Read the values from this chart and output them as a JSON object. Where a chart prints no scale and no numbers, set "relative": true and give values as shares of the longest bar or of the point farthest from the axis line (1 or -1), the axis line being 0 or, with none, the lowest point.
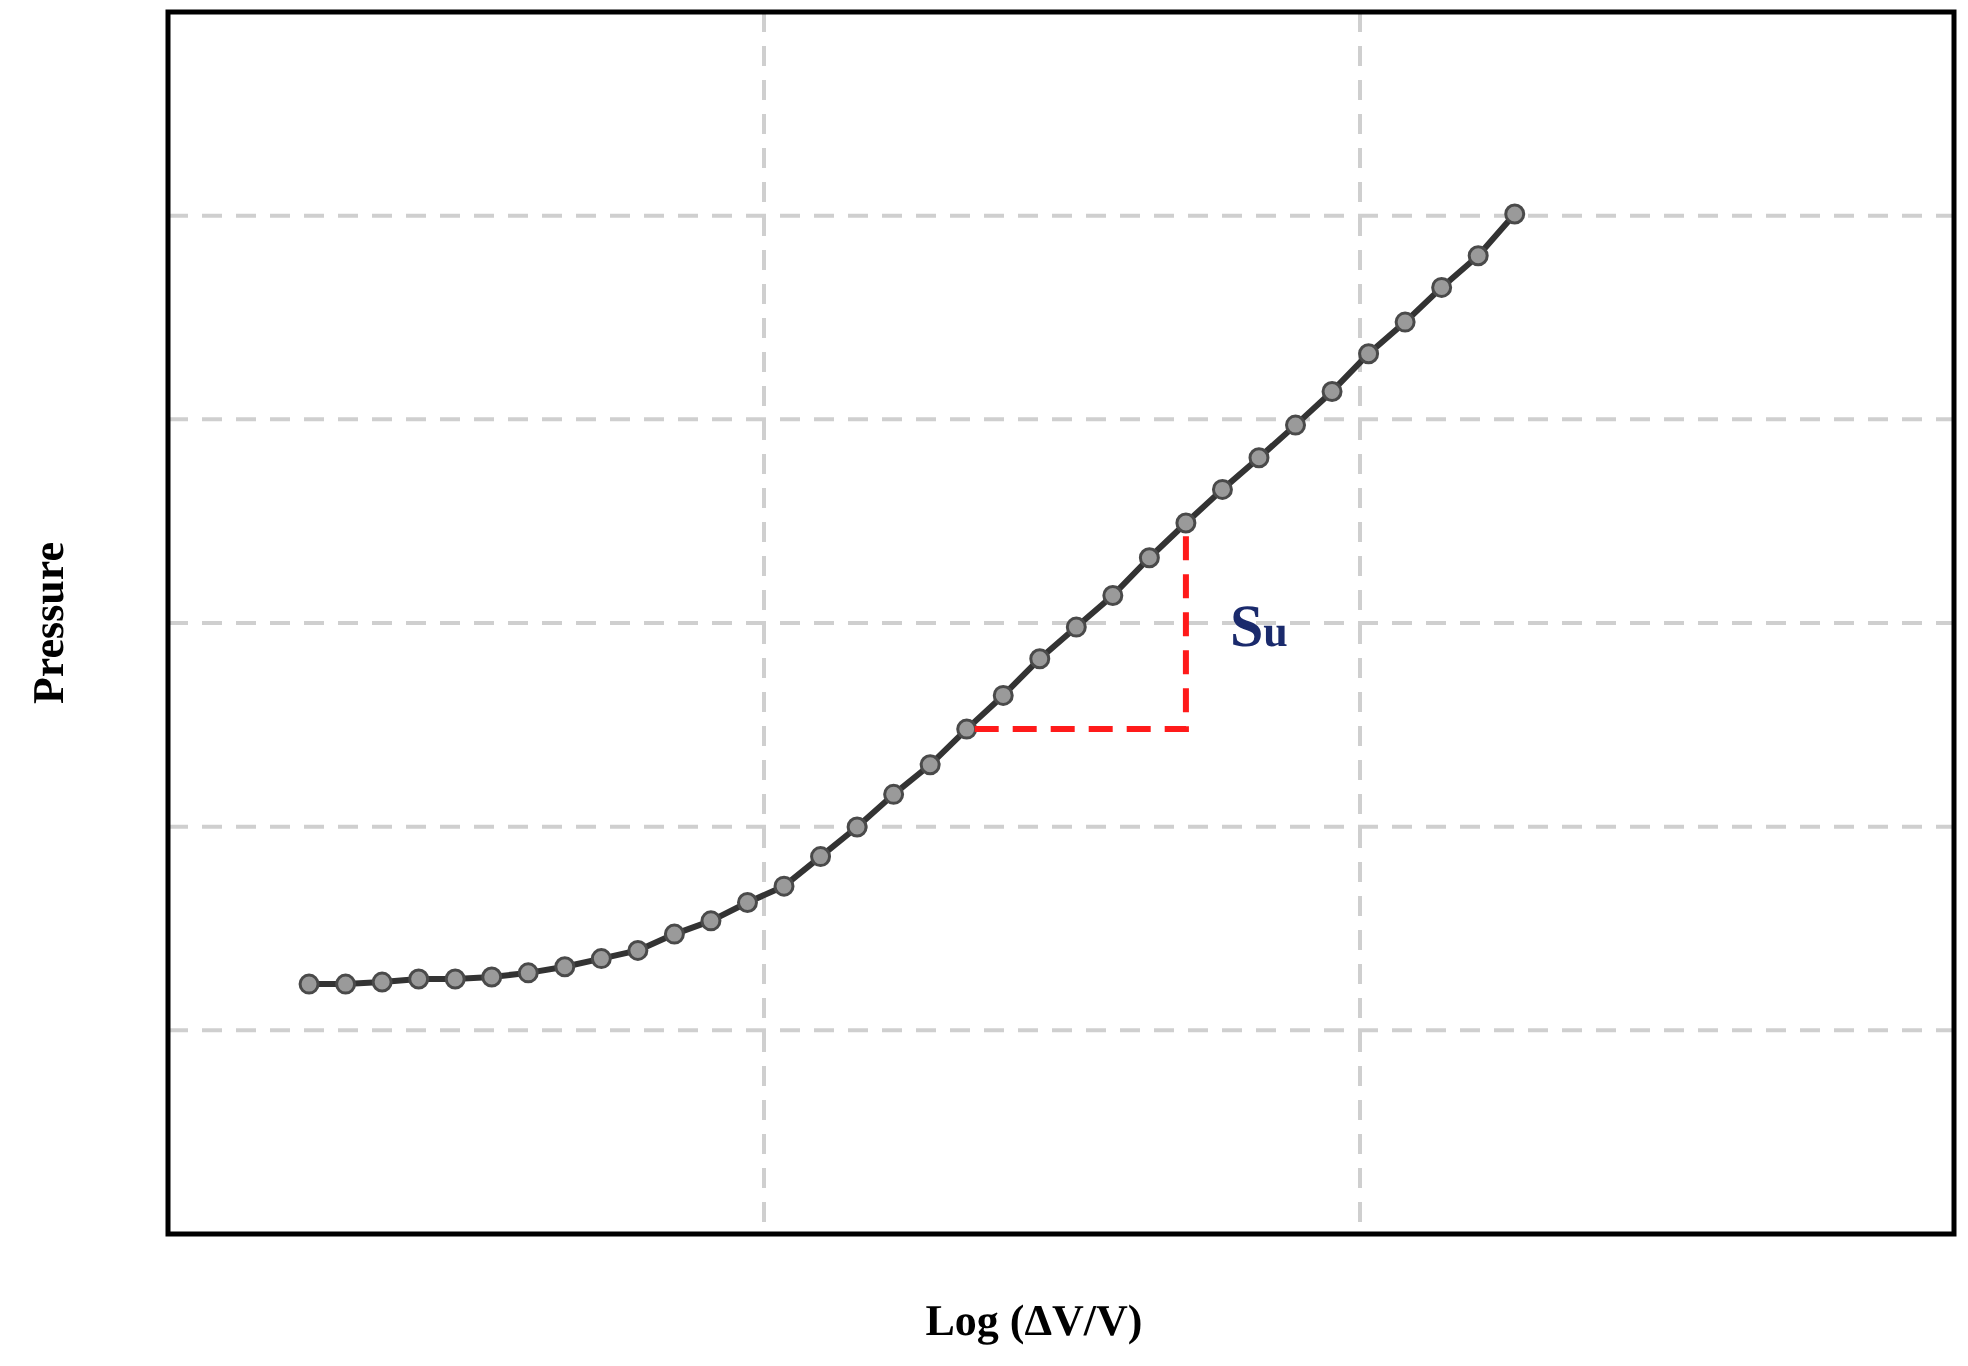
{
  "chart_data": {
    "type": "line",
    "relative": true,
    "xlabel": "Log (ΔV/V)",
    "ylabel": "Pressure",
    "categories": [
      null,
      null,
      null,
      null,
      null,
      null,
      null,
      null,
      null,
      null,
      null,
      null,
      null,
      null,
      null,
      null,
      null,
      null,
      null,
      null,
      null,
      null,
      null,
      null,
      null,
      null,
      null,
      null,
      null,
      null,
      null,
      null,
      null,
      null
    ],
    "series": [
      {
        "color": "#333333",
        "values": [
          0.245,
          0.245,
          0.247,
          0.25,
          0.25,
          0.252,
          0.256,
          0.262,
          0.27,
          0.278,
          0.294,
          0.307,
          0.325,
          0.341,
          0.37,
          0.399,
          0.431,
          0.46,
          0.495,
          0.528,
          0.564,
          0.595,
          0.626,
          0.663,
          0.697,
          0.73,
          0.761,
          0.793,
          0.826,
          0.863,
          0.894,
          0.928,
          0.959,
          1
        ]
      }
    ],
    "annotations": [
      "S$_{u}$"
    ],
    "grid": true,
    "marker": "circle",
    "line_style": "solid",
    "legend": false
  }
}
